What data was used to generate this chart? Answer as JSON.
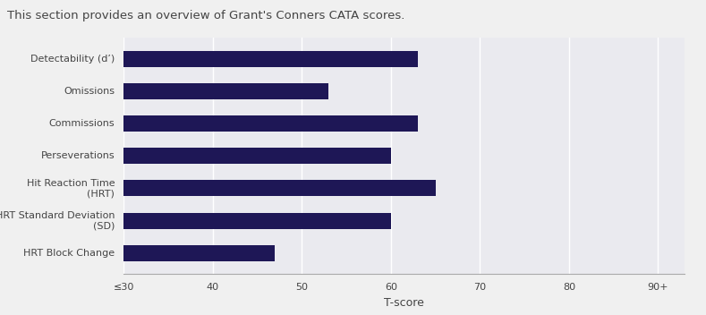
{
  "title": "This section provides an overview of Grant's Conners CATA scores.",
  "categories": [
    "HRT Block Change",
    "HRT Standard Deviation\n(SD)",
    "Hit Reaction Time\n(HRT)",
    "Perseverations",
    "Commissions",
    "Omissions",
    "Detectability (d’)"
  ],
  "values": [
    47,
    60,
    65,
    60,
    63,
    53,
    63
  ],
  "bar_color": "#1e1756",
  "fig_bg_color": "#f0f0f0",
  "plot_bg_color": "#eaeaef",
  "grid_color": "#ffffff",
  "spine_color": "#aaaaaa",
  "text_color": "#444444",
  "xlabel": "T-score",
  "xtick_labels": [
    "≤30",
    "40",
    "50",
    "60",
    "70",
    "80",
    "90+"
  ],
  "xtick_positions": [
    30,
    40,
    50,
    60,
    70,
    80,
    90
  ],
  "xlim": [
    30,
    93
  ],
  "bar_height": 0.5,
  "title_fontsize": 9.5,
  "label_fontsize": 8,
  "tick_fontsize": 8,
  "xlabel_fontsize": 9
}
